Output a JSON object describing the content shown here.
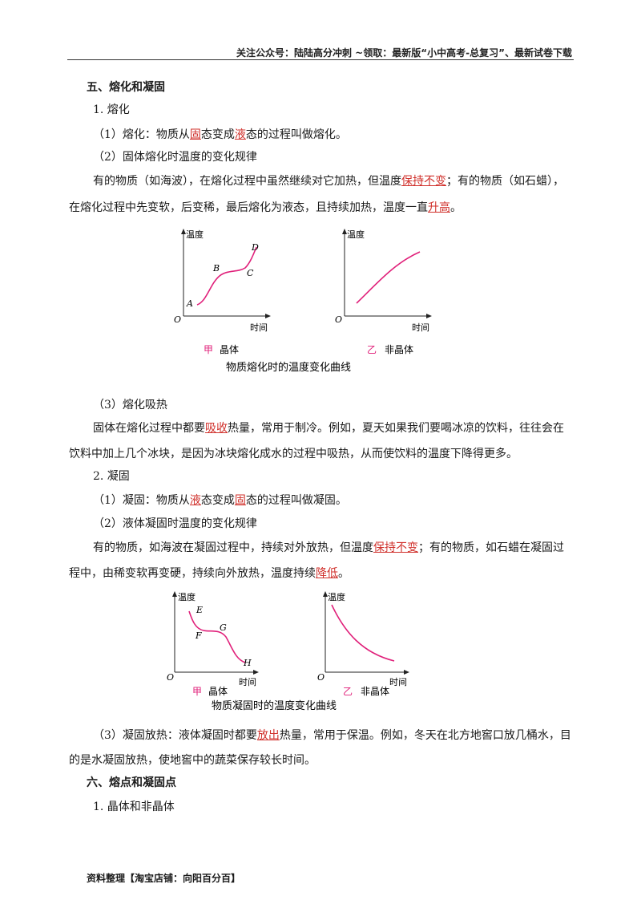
{
  "header": {
    "text": "关注公众号：陆陆高分冲刺  ~领取：最新版“小中高考-总复习”、最新试卷下载"
  },
  "sec5": {
    "heading": "五、熔化和凝固",
    "sub1": "1. 熔化",
    "p1": {
      "a": "（1）熔化：物质从",
      "b": "固",
      "c": "态变成",
      "d": "液",
      "e": "态的过程叫做熔化。"
    },
    "p2": "（2）固体熔化时温度的变化规律",
    "p3": {
      "a": "有的物质（如海波），在熔化过程中虽然继续对它加热，但温度",
      "b": "保持不变",
      "c": "；有的物质（如石蜡），"
    },
    "p4": {
      "a": "在熔化过程中先变软，后变稀，最后熔化为液态，且持续加热，温度一直",
      "b": "升高",
      "c": "。"
    },
    "fig1": {
      "left": {
        "ylabel": "温度",
        "xlabel": "时间",
        "origin": "O",
        "points": [
          "A",
          "B",
          "C",
          "D"
        ],
        "tag": "甲",
        "tag_text": "晶体"
      },
      "right": {
        "ylabel": "温度",
        "xlabel": "时间",
        "origin": "O",
        "tag": "乙",
        "tag_text": "非晶体"
      },
      "caption": "物质熔化时的温度变化曲线"
    },
    "p5": "（3）熔化吸热",
    "p6": {
      "a": "固体在熔化过程中都要",
      "b": "吸收",
      "c": "热量，常用于制冷。例如，夏天如果我们要喝冰凉的饮料，往往会在"
    },
    "p7": "饮料中加上几个冰块，是因为冰块熔化成水的过程中吸热，从而使饮料的温度下降得更多。",
    "sub2": "2. 凝固",
    "p8": {
      "a": "（1）凝固：物质从",
      "b": "液",
      "c": "态变成",
      "d": "固",
      "e": "态的过程叫做凝固。"
    },
    "p9": "（2）液体凝固时温度的变化规律",
    "p10": {
      "a": "有的物质，如海波在凝固过程中，持续对外放热，但温度",
      "b": "保持不变",
      "c": "；有的物质，如石蜡在凝固过"
    },
    "p11": {
      "a": "程中，由稀变软再变硬，持续向外放热，温度持续",
      "b": "降低",
      "c": "。"
    },
    "fig2": {
      "left": {
        "ylabel": "温度",
        "xlabel": "时间",
        "origin": "O",
        "points": [
          "E",
          "F",
          "G",
          "H"
        ],
        "tag": "甲",
        "tag_text": "晶体"
      },
      "right": {
        "ylabel": "温度",
        "xlabel": "时间",
        "origin": "O",
        "tag": "乙",
        "tag_text": "非晶体"
      },
      "caption": "物质凝固时的温度变化曲线"
    },
    "p12": {
      "a": "（3）凝固放热：液体凝固时都要",
      "b": "放出",
      "c": "热量，常用于保温。例如，冬天在北方地窖口放几桶水，目"
    },
    "p13": "的是水凝固放热，使地窖中的蔬菜保存较长时间。"
  },
  "sec6": {
    "heading": "六、熔点和凝固点",
    "sub1": "1. 晶体和非晶体"
  },
  "footer": {
    "text": "资料整理【淘宝店铺：向阳百分百】"
  },
  "colors": {
    "curve": "#e0207a",
    "answer": "#d0302b",
    "tag": "#e0207a"
  }
}
